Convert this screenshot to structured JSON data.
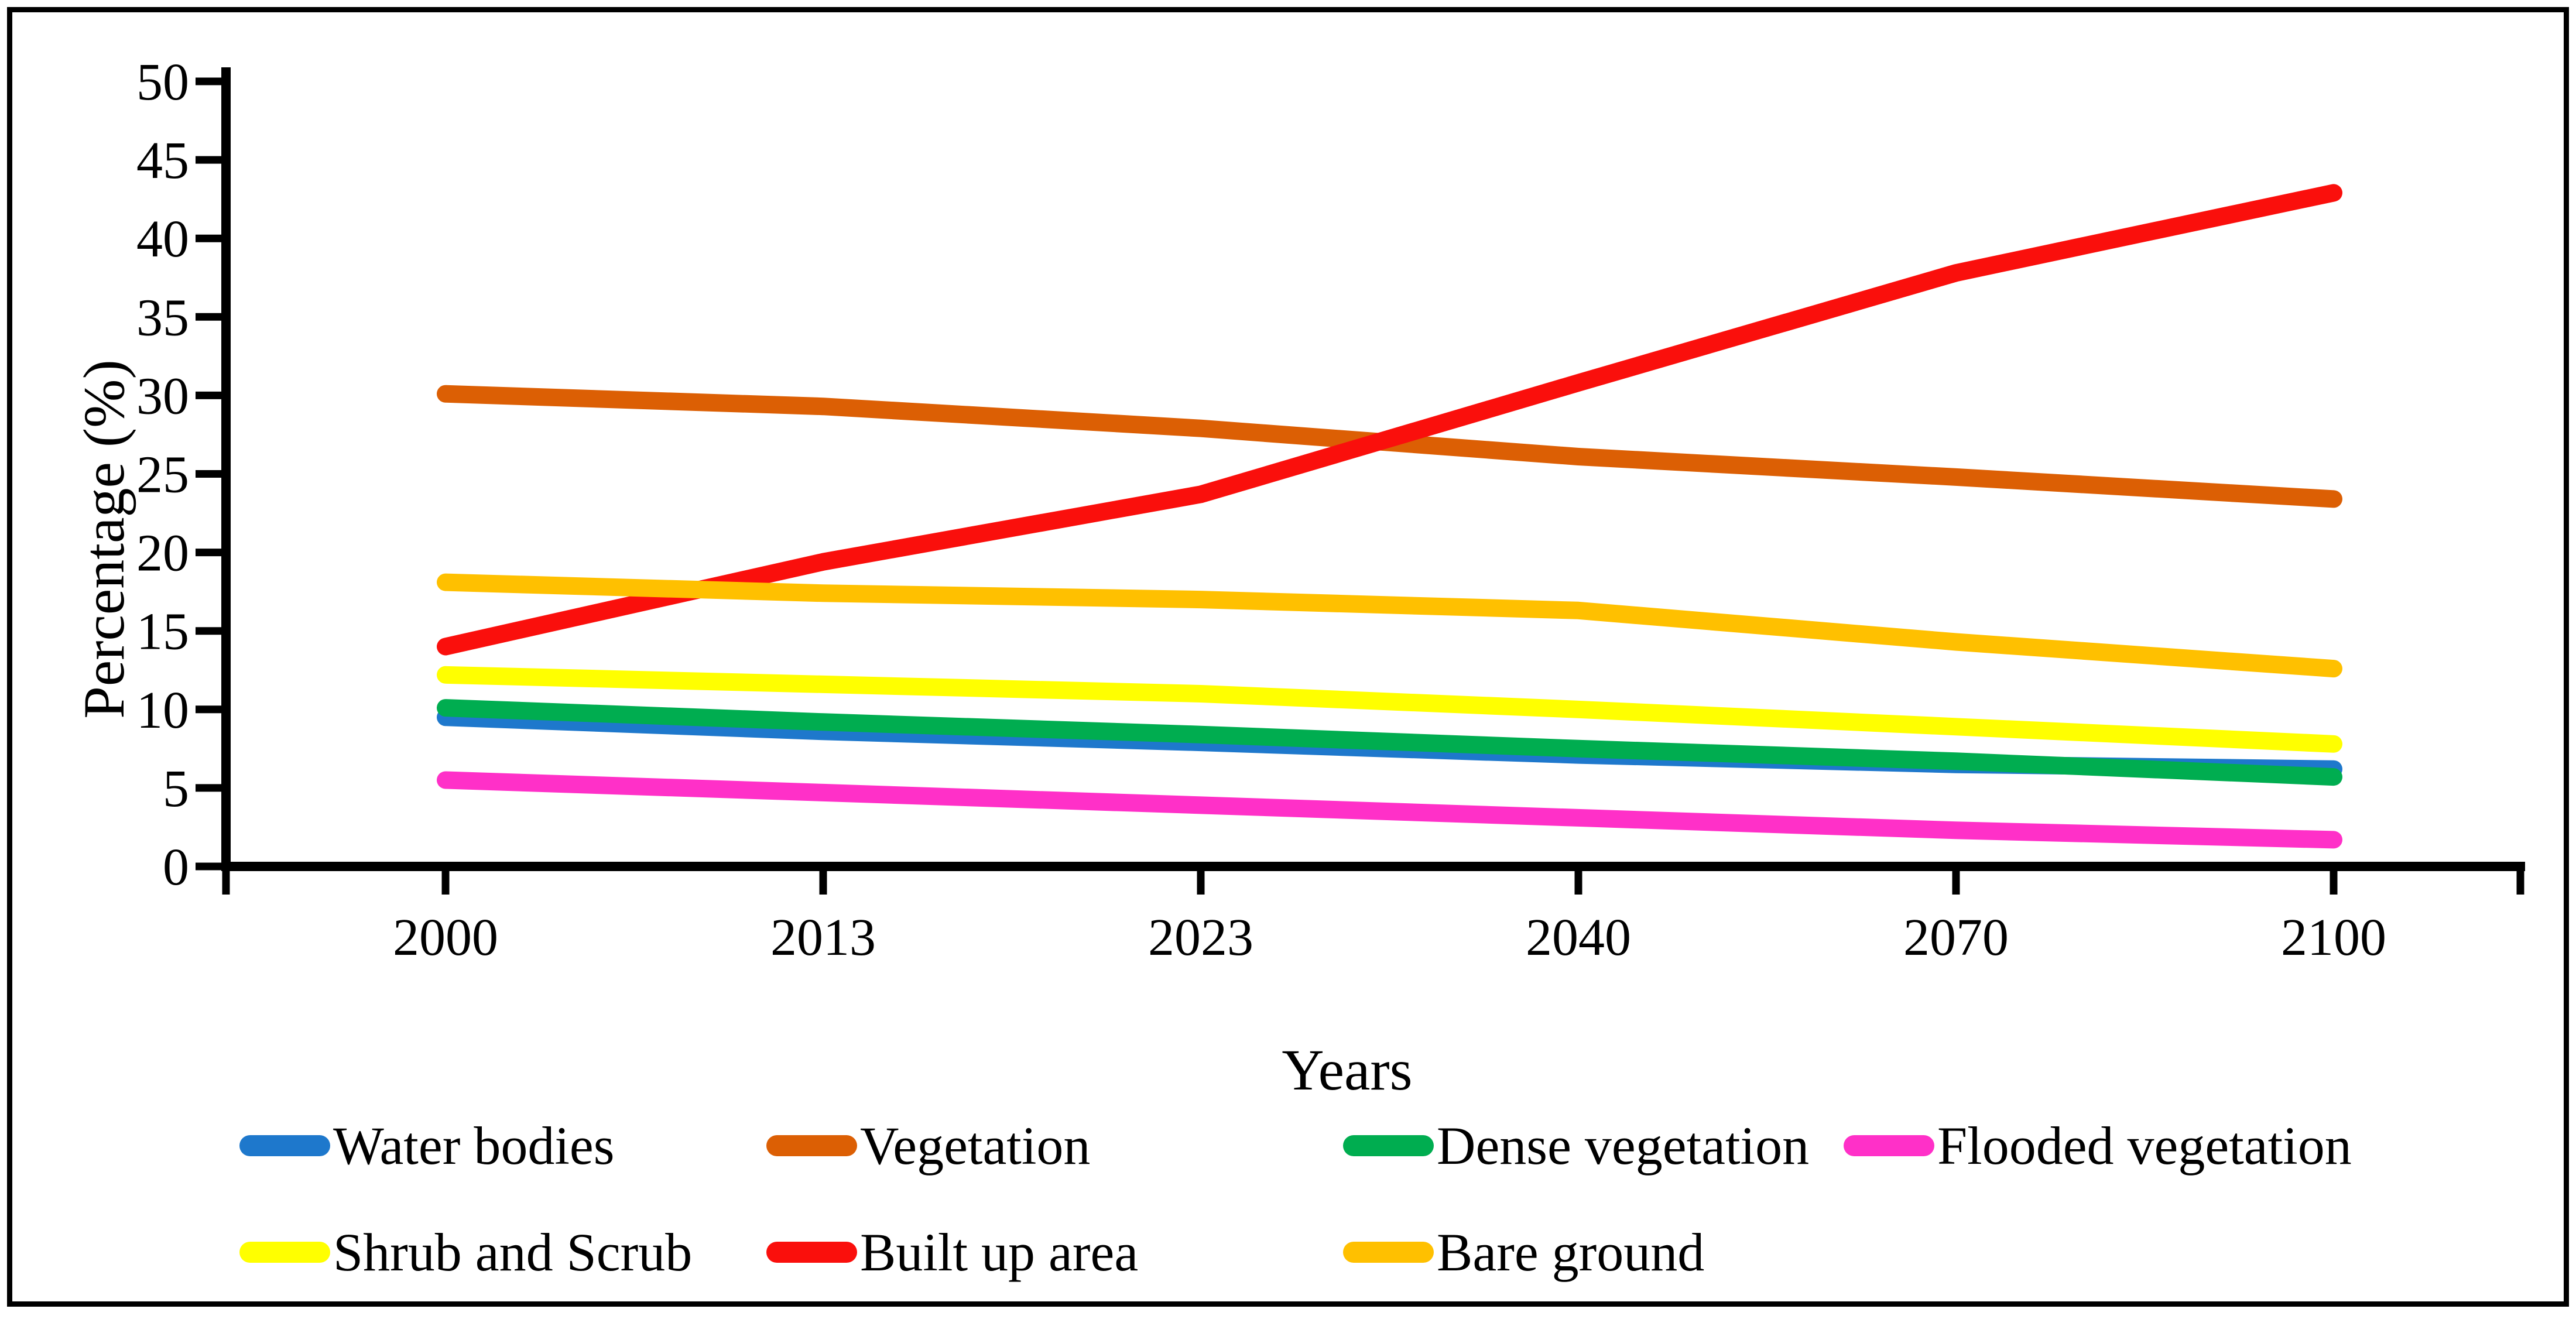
{
  "figure": {
    "background": "#ffffff",
    "border_color": "#000000"
  },
  "chart_data": {
    "type": "line",
    "title": "",
    "xlabel": "Years",
    "ylabel": "Percentage (%)",
    "categories": [
      "2000",
      "2013",
      "2023",
      "2040",
      "2070",
      "2100"
    ],
    "ylim": [
      0,
      50
    ],
    "yticks": [
      0,
      5,
      10,
      15,
      20,
      25,
      30,
      35,
      40,
      45,
      50
    ],
    "grid": false,
    "legend_position": "bottom",
    "series": [
      {
        "name": "Water bodies",
        "color": "#1e78cc",
        "values": [
          9.5,
          8.6,
          7.9,
          7.1,
          6.5,
          6.2
        ]
      },
      {
        "name": "Vegetation",
        "color": "#dc5f04",
        "values": [
          30.1,
          29.3,
          27.9,
          26.1,
          24.8,
          23.4
        ]
      },
      {
        "name": "Dense vegetation",
        "color": "#00ad50",
        "values": [
          10.1,
          9.2,
          8.4,
          7.5,
          6.7,
          5.7
        ]
      },
      {
        "name": "Flooded vegetation",
        "color": "#ff30c8",
        "values": [
          5.5,
          4.7,
          3.9,
          3.1,
          2.3,
          1.7
        ]
      },
      {
        "name": "Shrub and Scrub",
        "color": "#ffff00",
        "values": [
          12.2,
          11.6,
          11.0,
          10.0,
          8.9,
          7.8
        ]
      },
      {
        "name": "Built up area",
        "color": "#fa0f0c",
        "values": [
          14.0,
          19.4,
          23.7,
          30.8,
          37.8,
          42.9
        ]
      },
      {
        "name": "Bare ground",
        "color": "#ffc000",
        "values": [
          18.1,
          17.4,
          17.0,
          16.3,
          14.3,
          12.6
        ]
      }
    ]
  },
  "legend": {
    "rows": [
      [
        0,
        1,
        2,
        3
      ],
      [
        4,
        5,
        6
      ]
    ]
  }
}
